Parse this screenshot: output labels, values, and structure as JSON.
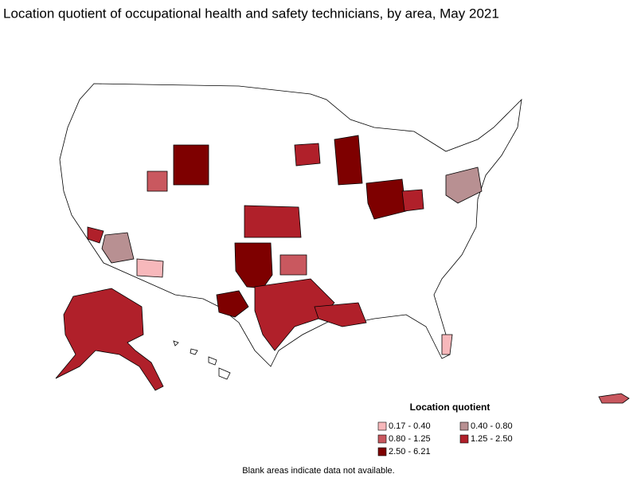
{
  "title": "Location quotient of occupational health and safety technicians, by area, May 2021",
  "legend": {
    "title": "Location quotient",
    "items": [
      {
        "label": "0.17 - 0.40",
        "color": "#f7b8bb"
      },
      {
        "label": "0.40 - 0.80",
        "color": "#b89092"
      },
      {
        "label": "0.80 - 1.25",
        "color": "#c9585f"
      },
      {
        "label": "1.25 - 2.50",
        "color": "#b0202a"
      },
      {
        "label": "2.50 - 6.21",
        "color": "#7e0000"
      }
    ]
  },
  "note": "Blank areas indicate data not available."
}
